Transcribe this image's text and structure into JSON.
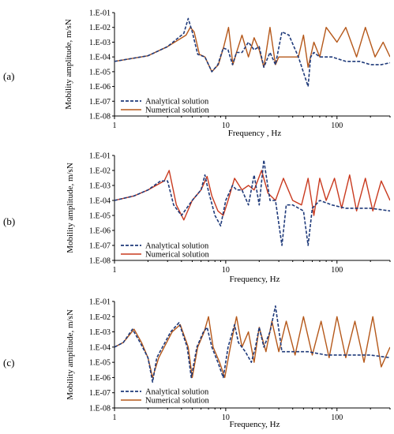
{
  "chart_data": [
    {
      "type": "line",
      "panel_label": "(a)",
      "xlabel": "Frequency , Hz",
      "ylabel": "Mobility amplitude, m/sN",
      "x_scale": "log",
      "y_scale": "log",
      "xlim": [
        1,
        300
      ],
      "ylim": [
        1e-08,
        0.1
      ],
      "x_ticks": [
        {
          "value": 1,
          "label": "1"
        },
        {
          "value": 10,
          "label": "10"
        },
        {
          "value": 100,
          "label": "100"
        }
      ],
      "y_ticks": [
        {
          "value": 0.1,
          "label": "1.E-01"
        },
        {
          "value": 0.01,
          "label": "1.E-02"
        },
        {
          "value": 0.001,
          "label": "1.E-03"
        },
        {
          "value": 0.0001,
          "label": "1.E-04"
        },
        {
          "value": 1e-05,
          "label": "1.E-05"
        },
        {
          "value": 1e-06,
          "label": "1.E-06"
        },
        {
          "value": 1e-07,
          "label": "1.E-07"
        },
        {
          "value": 1e-08,
          "label": "1.E-08"
        }
      ],
      "grid": false,
      "legend_position": "bottom-left",
      "series": [
        {
          "name": "Analytical solution",
          "color": "#1f3a7a",
          "dash": "dashed",
          "x": [
            1,
            2,
            3,
            4.2,
            4.6,
            5,
            5.6,
            6.5,
            7.5,
            8.5,
            9.5,
            10.5,
            11.5,
            12.5,
            14,
            16,
            18,
            20,
            22,
            25,
            28,
            32,
            37,
            45,
            55,
            58,
            62,
            70,
            90,
            120,
            160,
            200,
            250,
            300
          ],
          "y": [
            5e-05,
            0.00012,
            0.0005,
            0.004,
            0.04,
            0.005,
            0.00015,
            0.0001,
            1e-05,
            3e-05,
            0.0004,
            0.0003,
            3e-05,
            0.0002,
            0.0002,
            0.001,
            0.0003,
            0.0005,
            2e-05,
            0.0002,
            3e-05,
            0.005,
            0.003,
            0.0001,
            1e-06,
            0.0001,
            0.0002,
            0.0001,
            0.0001,
            5e-05,
            5e-05,
            3e-05,
            3e-05,
            4e-05
          ]
        },
        {
          "name": "Numerical solution",
          "color": "#b5581a",
          "dash": "solid",
          "x": [
            1,
            2,
            3,
            4.4,
            4.8,
            5.2,
            5.8,
            6.5,
            7.5,
            8.6,
            9.6,
            10.6,
            11.6,
            12.5,
            14,
            16,
            18,
            20,
            22,
            25,
            28,
            30,
            35,
            45,
            50,
            55,
            62,
            70,
            80,
            100,
            120,
            150,
            180,
            220,
            260,
            300
          ],
          "y": [
            5e-05,
            0.00012,
            0.0005,
            0.003,
            0.01,
            0.005,
            0.00015,
            0.0001,
            1e-05,
            3e-05,
            0.0005,
            0.01,
            3e-05,
            0.0002,
            0.003,
            0.0001,
            0.002,
            0.0003,
            2e-05,
            0.01,
            3e-05,
            0.0001,
            0.0001,
            0.0001,
            0.003,
            2e-05,
            0.001,
            0.0001,
            0.01,
            0.001,
            0.01,
            0.0001,
            0.01,
            0.0001,
            0.001,
            0.0001
          ]
        }
      ]
    },
    {
      "type": "line",
      "panel_label": "(b)",
      "xlabel": "Frequency, Hz",
      "ylabel": "Mobility amplitude, m/sN",
      "x_scale": "log",
      "y_scale": "log",
      "xlim": [
        1,
        300
      ],
      "ylim": [
        1e-08,
        0.1
      ],
      "x_ticks": [
        {
          "value": 1,
          "label": "1"
        },
        {
          "value": 10,
          "label": "10"
        },
        {
          "value": 100,
          "label": "100"
        }
      ],
      "y_ticks": [
        {
          "value": 0.1,
          "label": "1.E-01"
        },
        {
          "value": 0.01,
          "label": "1.E-02"
        },
        {
          "value": 0.001,
          "label": "1.E-03"
        },
        {
          "value": 0.0001,
          "label": "1.E-04"
        },
        {
          "value": 1e-05,
          "label": "1.E-05"
        },
        {
          "value": 1e-06,
          "label": "1.E-06"
        },
        {
          "value": 1e-07,
          "label": "1.E-07"
        },
        {
          "value": 1e-08,
          "label": "1.E-08"
        }
      ],
      "grid": false,
      "legend_position": "bottom-left",
      "series": [
        {
          "name": "Analytical solution",
          "color": "#1f3a7a",
          "dash": "dashed",
          "x": [
            1,
            1.5,
            2,
            2.6,
            3,
            3.4,
            4,
            5,
            6,
            6.5,
            7,
            8,
            9,
            10,
            11.5,
            12.5,
            14,
            16,
            18,
            20,
            22,
            25,
            28,
            32,
            35,
            40,
            50,
            55,
            60,
            70,
            90,
            120,
            160,
            200,
            300
          ],
          "y": [
            0.0001,
            0.0002,
            0.0005,
            0.002,
            0.002,
            5e-05,
            1e-05,
            0.0001,
            0.0005,
            0.005,
            0.0004,
            1e-05,
            2e-06,
            0.0001,
            0.001,
            0.0005,
            0.0005,
            5e-05,
            0.005,
            5e-05,
            0.05,
            0.0001,
            0.0001,
            1e-07,
            5e-05,
            5e-05,
            2e-05,
            1e-07,
            3e-05,
            0.0001,
            5e-05,
            3e-05,
            3e-05,
            3e-05,
            2e-05
          ]
        },
        {
          "name": "Numerical solution",
          "color": "#c93a1f",
          "dash": "solid",
          "x": [
            1,
            1.5,
            2,
            2.8,
            3.1,
            3.6,
            4.2,
            5,
            6,
            6.8,
            7.5,
            8.5,
            9.5,
            10.5,
            12,
            14,
            16,
            18,
            21,
            24,
            28,
            33,
            40,
            48,
            55,
            62,
            70,
            80,
            95,
            110,
            130,
            150,
            180,
            210,
            250,
            300
          ],
          "y": [
            0.0001,
            0.0002,
            0.0005,
            0.002,
            0.01,
            5e-05,
            5e-06,
            0.0001,
            0.0005,
            0.004,
            0.0002,
            2e-05,
            1e-05,
            0.0001,
            0.003,
            0.0005,
            0.001,
            0.0005,
            0.01,
            0.0003,
            0.0001,
            0.003,
            0.0001,
            5e-05,
            0.003,
            1e-05,
            0.003,
            0.0001,
            0.003,
            3e-05,
            0.005,
            2e-05,
            0.003,
            2e-05,
            0.002,
            0.0001
          ]
        }
      ]
    },
    {
      "type": "line",
      "panel_label": "(c)",
      "xlabel": "Frequency, Hz",
      "ylabel": "Mobility amplitude, m/sN",
      "x_scale": "log",
      "y_scale": "log",
      "xlim": [
        1,
        300
      ],
      "ylim": [
        1e-08,
        0.1
      ],
      "x_ticks": [
        {
          "value": 1,
          "label": "1"
        },
        {
          "value": 10,
          "label": "10"
        },
        {
          "value": 100,
          "label": "100"
        }
      ],
      "y_ticks": [
        {
          "value": 0.1,
          "label": "1.E-01"
        },
        {
          "value": 0.01,
          "label": "1.E-02"
        },
        {
          "value": 0.001,
          "label": "1.E-03"
        },
        {
          "value": 0.0001,
          "label": "1.E-04"
        },
        {
          "value": 1e-05,
          "label": "1.E-05"
        },
        {
          "value": 1e-06,
          "label": "1.E-06"
        },
        {
          "value": 1e-07,
          "label": "1.E-07"
        },
        {
          "value": 1e-08,
          "label": "1.E-08"
        }
      ],
      "grid": false,
      "legend_position": "bottom-left",
      "series": [
        {
          "name": "Analytical solution",
          "color": "#1f3a7a",
          "dash": "dashed",
          "x": [
            1,
            1.2,
            1.45,
            1.7,
            2,
            2.2,
            2.4,
            2.7,
            3.2,
            3.8,
            4.5,
            4.9,
            5.5,
            6.3,
            6.8,
            7.5,
            8.5,
            9.5,
            10.5,
            12,
            13,
            15,
            17,
            18.5,
            20,
            22,
            25,
            28,
            32,
            40,
            55,
            80,
            120,
            200,
            300
          ],
          "y": [
            0.0001,
            0.0002,
            0.0015,
            0.0002,
            2e-05,
            5e-07,
            2e-05,
            0.0001,
            0.001,
            0.004,
            0.0001,
            1e-06,
            0.0001,
            0.001,
            0.002,
            0.0001,
            1e-05,
            1e-06,
            0.0001,
            0.003,
            0.0002,
            5e-05,
            1e-05,
            0.0001,
            0.002,
            0.0001,
            0.001,
            0.05,
            5e-05,
            5e-05,
            5e-05,
            3e-05,
            3e-05,
            3e-05,
            2e-05
          ]
        },
        {
          "name": "Numerical solution",
          "color": "#b5581a",
          "dash": "solid",
          "x": [
            1,
            1.2,
            1.5,
            1.75,
            2,
            2.2,
            2.5,
            2.8,
            3.3,
            3.9,
            4.6,
            5,
            5.6,
            6.4,
            7,
            7.7,
            8.8,
            9.8,
            11,
            12.5,
            14,
            16,
            18,
            20,
            23,
            26,
            30,
            35,
            42,
            50,
            60,
            72,
            85,
            100,
            120,
            145,
            175,
            210,
            250,
            300
          ],
          "y": [
            0.0001,
            0.0002,
            0.0015,
            0.0002,
            2e-05,
            1e-06,
            2e-05,
            0.0001,
            0.001,
            0.003,
            0.0001,
            1e-06,
            0.0001,
            0.001,
            0.01,
            0.0001,
            1e-05,
            1e-06,
            0.0001,
            0.01,
            0.0001,
            0.001,
            1e-05,
            0.002,
            5e-05,
            0.005,
            5e-05,
            0.005,
            3e-05,
            0.01,
            3e-05,
            0.005,
            2e-05,
            0.01,
            2e-05,
            0.005,
            1e-05,
            0.01,
            5e-06,
            0.0001
          ]
        }
      ]
    }
  ]
}
